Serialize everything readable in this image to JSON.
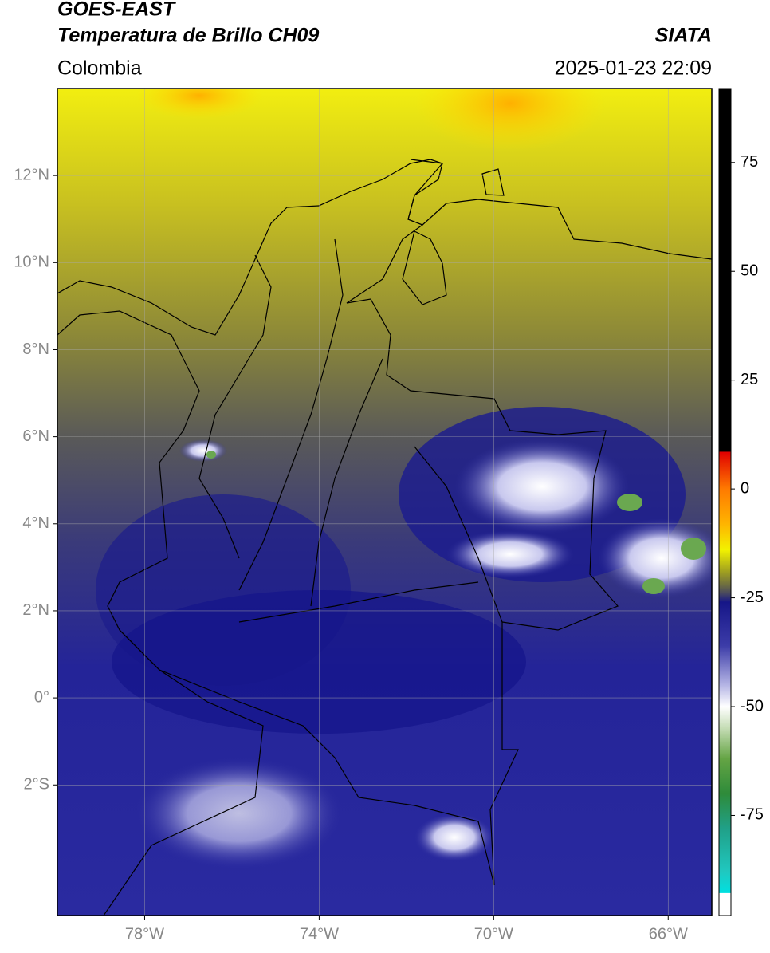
{
  "header": {
    "title": "GOES-EAST",
    "subtitle": "Temperatura de Brillo CH09",
    "source": "SIATA",
    "region": "Colombia",
    "timestamp": "2025-01-23 22:09"
  },
  "map": {
    "xlim": [
      -80,
      -65
    ],
    "ylim": [
      -5,
      14
    ],
    "xticks": [
      {
        "value": -78,
        "label": "78°W"
      },
      {
        "value": -74,
        "label": "74°W"
      },
      {
        "value": -70,
        "label": "70°W"
      },
      {
        "value": -66,
        "label": "66°W"
      }
    ],
    "yticks": [
      {
        "value": 12,
        "label": "12°N"
      },
      {
        "value": 10,
        "label": "10°N"
      },
      {
        "value": 8,
        "label": "8°N"
      },
      {
        "value": 6,
        "label": "6°N"
      },
      {
        "value": 4,
        "label": "4°N"
      },
      {
        "value": 2,
        "label": "2°N"
      },
      {
        "value": 0,
        "label": "0°"
      },
      {
        "value": -2,
        "label": "2°S"
      }
    ],
    "grid": true
  },
  "colorbar": {
    "lim": [
      -98,
      92
    ],
    "ticks": [
      75,
      50,
      25,
      0,
      -25,
      -50,
      -75
    ],
    "stops": [
      {
        "value": 92,
        "color": "#000000"
      },
      {
        "value": 8.6,
        "color": "#000000"
      },
      {
        "value": 8.5,
        "color": "#e00000"
      },
      {
        "value": 0,
        "color": "#ff7a00"
      },
      {
        "value": -8,
        "color": "#ffb400"
      },
      {
        "value": -14,
        "color": "#f2f200"
      },
      {
        "value": -19,
        "color": "#a0a020"
      },
      {
        "value": -22,
        "color": "#6e6e40"
      },
      {
        "value": -24,
        "color": "#484860"
      },
      {
        "value": -26,
        "color": "#161688"
      },
      {
        "value": -36,
        "color": "#3c3ca8"
      },
      {
        "value": -45,
        "color": "#b4b4e4"
      },
      {
        "value": -50,
        "color": "#ffffff"
      },
      {
        "value": -55,
        "color": "#c4dcb4"
      },
      {
        "value": -62,
        "color": "#64a444"
      },
      {
        "value": -70,
        "color": "#2e8b3a"
      },
      {
        "value": -78,
        "color": "#20a088"
      },
      {
        "value": -88,
        "color": "#20c8c0"
      },
      {
        "value": -92.8,
        "color": "#00e0e0"
      },
      {
        "value": -92.9,
        "color": "#ffffff"
      },
      {
        "value": -98,
        "color": "#ffffff"
      }
    ]
  }
}
